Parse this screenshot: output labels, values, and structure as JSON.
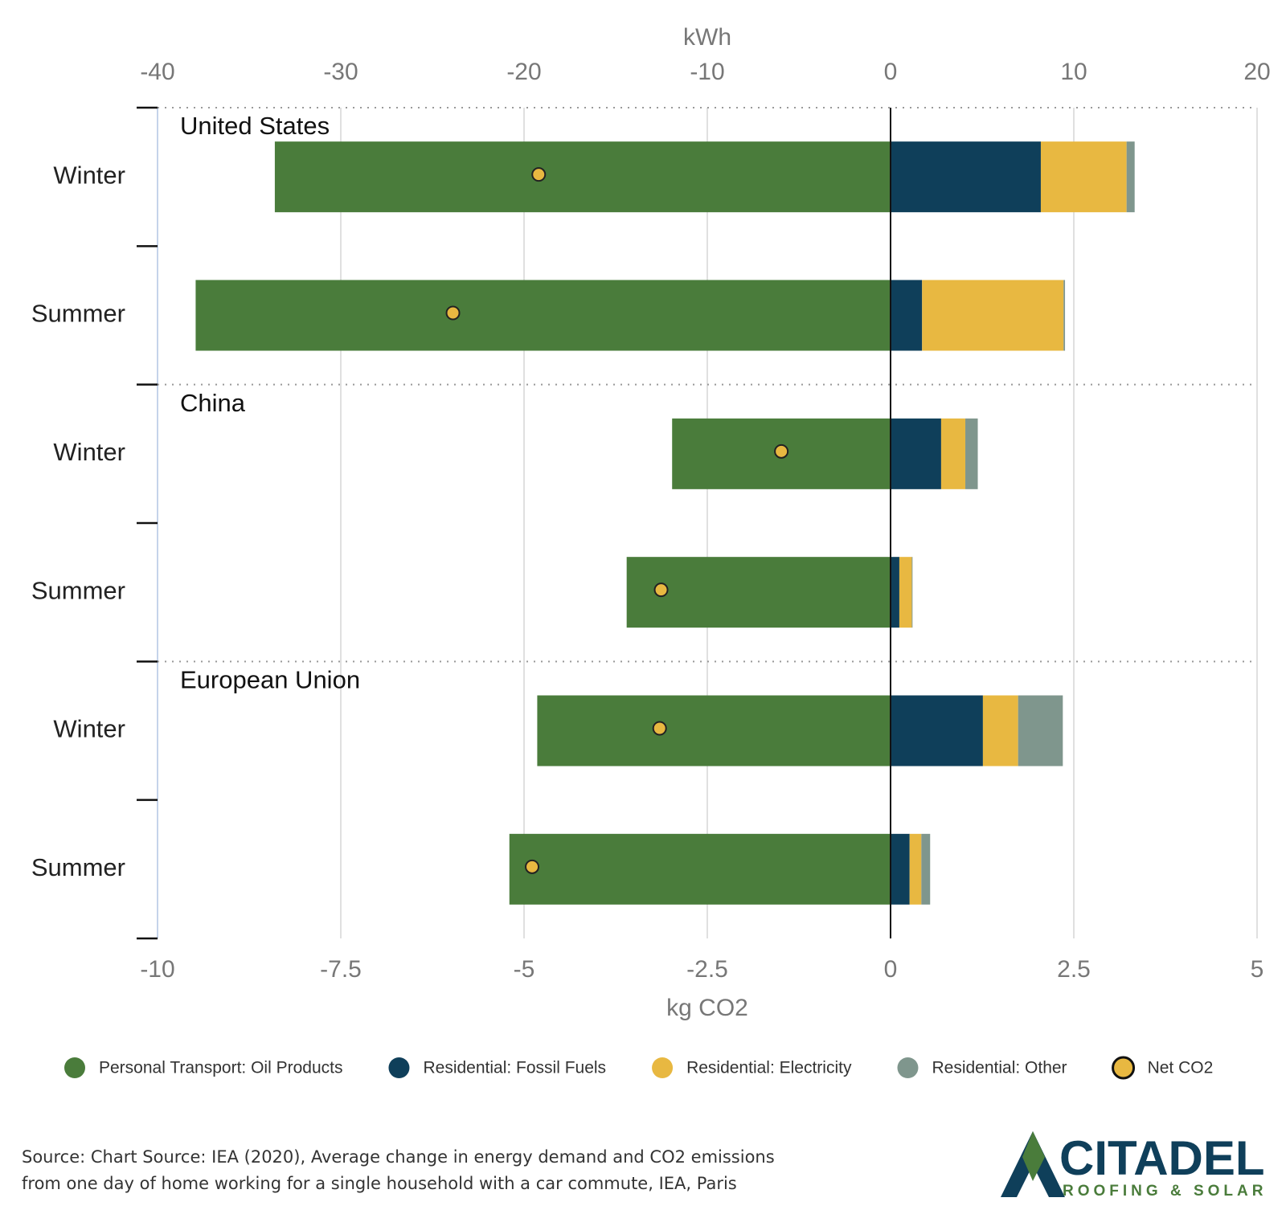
{
  "chart_data": {
    "type": "bar",
    "orientation": "horizontal",
    "stacked": true,
    "x2label": "kWh",
    "x2lim": [
      -40,
      20
    ],
    "x2ticks": [
      -40,
      -30,
      -20,
      -10,
      0,
      10,
      20
    ],
    "xlabel": "kg CO2",
    "xlim": [
      -10,
      5
    ],
    "xticks": [
      -10,
      -7.5,
      -5,
      -2.5,
      0,
      2.5,
      5
    ],
    "grid": true,
    "groups": [
      "United States",
      "China",
      "European Union"
    ],
    "categories": [
      "Winter",
      "Summer",
      "Winter",
      "Summer",
      "Winter",
      "Summer"
    ],
    "series": [
      {
        "name": "Personal Transport: Oil Products",
        "color": "#4a7c3b",
        "values": [
          -8.4,
          -9.48,
          -2.98,
          -3.6,
          -4.82,
          -5.2
        ]
      },
      {
        "name": "Residential: Fossil Fuels",
        "color": "#0f3f5a",
        "values": [
          2.05,
          0.43,
          0.69,
          0.12,
          1.26,
          0.26
        ]
      },
      {
        "name": "Residential: Electricity",
        "color": "#e8b841",
        "values": [
          1.17,
          1.93,
          0.33,
          0.17,
          0.48,
          0.16
        ]
      },
      {
        "name": "Residential: Other",
        "color": "#7f968d",
        "values": [
          0.11,
          0.02,
          0.17,
          0.01,
          0.61,
          0.12
        ]
      },
      {
        "name": "Net CO2",
        "type": "scatter",
        "color": "#e8b841",
        "values": [
          -4.8,
          -5.97,
          -1.49,
          -3.13,
          -3.15,
          -4.89
        ]
      }
    ]
  },
  "source": "Source: Chart Source: IEA (2020), Average change in energy demand and CO2 emissions from one day of home working for a single household with a car commute, IEA, Paris",
  "logo": {
    "name": "CITADEL",
    "tagline": "ROOFING & SOLAR"
  }
}
